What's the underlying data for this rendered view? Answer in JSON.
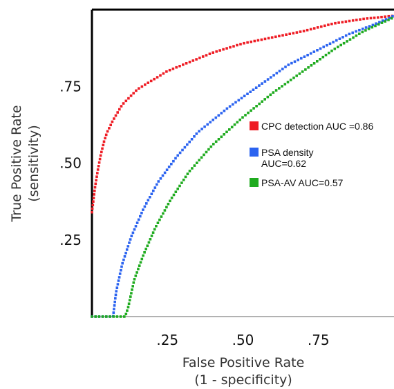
{
  "chart_data": {
    "type": "scatter",
    "xlabel": [
      "False Positive Rate",
      "(1 - specificity)"
    ],
    "ylabel": [
      "True Positive Rate",
      "(sensitivity)"
    ],
    "xlim": [
      0,
      1
    ],
    "ylim": [
      0,
      1
    ],
    "x_ticks": [
      ".25",
      ".50",
      ".75"
    ],
    "y_ticks": [
      ".75",
      ".50",
      ".25"
    ],
    "grid": false,
    "legend_position": "right-center",
    "series": [
      {
        "name": "CPC detection AUC =0.86",
        "color": "#ee1c24",
        "points": [
          [
            0.0,
            0.34
          ],
          [
            0.01,
            0.42
          ],
          [
            0.02,
            0.48
          ],
          [
            0.03,
            0.53
          ],
          [
            0.04,
            0.57
          ],
          [
            0.05,
            0.6
          ],
          [
            0.07,
            0.64
          ],
          [
            0.1,
            0.69
          ],
          [
            0.15,
            0.74
          ],
          [
            0.2,
            0.77
          ],
          [
            0.25,
            0.8
          ],
          [
            0.3,
            0.82
          ],
          [
            0.4,
            0.86
          ],
          [
            0.5,
            0.89
          ],
          [
            0.6,
            0.91
          ],
          [
            0.7,
            0.93
          ],
          [
            0.8,
            0.955
          ],
          [
            0.9,
            0.97
          ],
          [
            1.0,
            0.98
          ]
        ]
      },
      {
        "name": "PSA density AUC=0.62",
        "color": "#2b63f0",
        "points": [
          [
            0.0,
            0.0
          ],
          [
            0.07,
            0.0
          ],
          [
            0.08,
            0.08
          ],
          [
            0.1,
            0.17
          ],
          [
            0.13,
            0.26
          ],
          [
            0.17,
            0.35
          ],
          [
            0.22,
            0.44
          ],
          [
            0.28,
            0.52
          ],
          [
            0.35,
            0.6
          ],
          [
            0.45,
            0.68
          ],
          [
            0.55,
            0.75
          ],
          [
            0.65,
            0.82
          ],
          [
            0.75,
            0.87
          ],
          [
            0.85,
            0.92
          ],
          [
            0.93,
            0.95
          ],
          [
            1.0,
            0.98
          ]
        ]
      },
      {
        "name": "PSA-AV AUC=0.57",
        "color": "#1fab1f",
        "points": [
          [
            0.0,
            0.0
          ],
          [
            0.11,
            0.0
          ],
          [
            0.12,
            0.03
          ],
          [
            0.14,
            0.12
          ],
          [
            0.17,
            0.2
          ],
          [
            0.21,
            0.29
          ],
          [
            0.26,
            0.38
          ],
          [
            0.32,
            0.47
          ],
          [
            0.4,
            0.56
          ],
          [
            0.5,
            0.65
          ],
          [
            0.6,
            0.73
          ],
          [
            0.7,
            0.8
          ],
          [
            0.8,
            0.87
          ],
          [
            0.9,
            0.93
          ],
          [
            1.0,
            0.975
          ]
        ]
      }
    ],
    "legend": [
      {
        "lines": [
          "CPC detection AUC =0.86"
        ],
        "color": "#ee1c24"
      },
      {
        "lines": [
          "PSA density",
          "AUC=0.62"
        ],
        "color": "#2b63f0"
      },
      {
        "lines": [
          "PSA-AV AUC=0.57"
        ],
        "color": "#1fab1f"
      }
    ]
  }
}
